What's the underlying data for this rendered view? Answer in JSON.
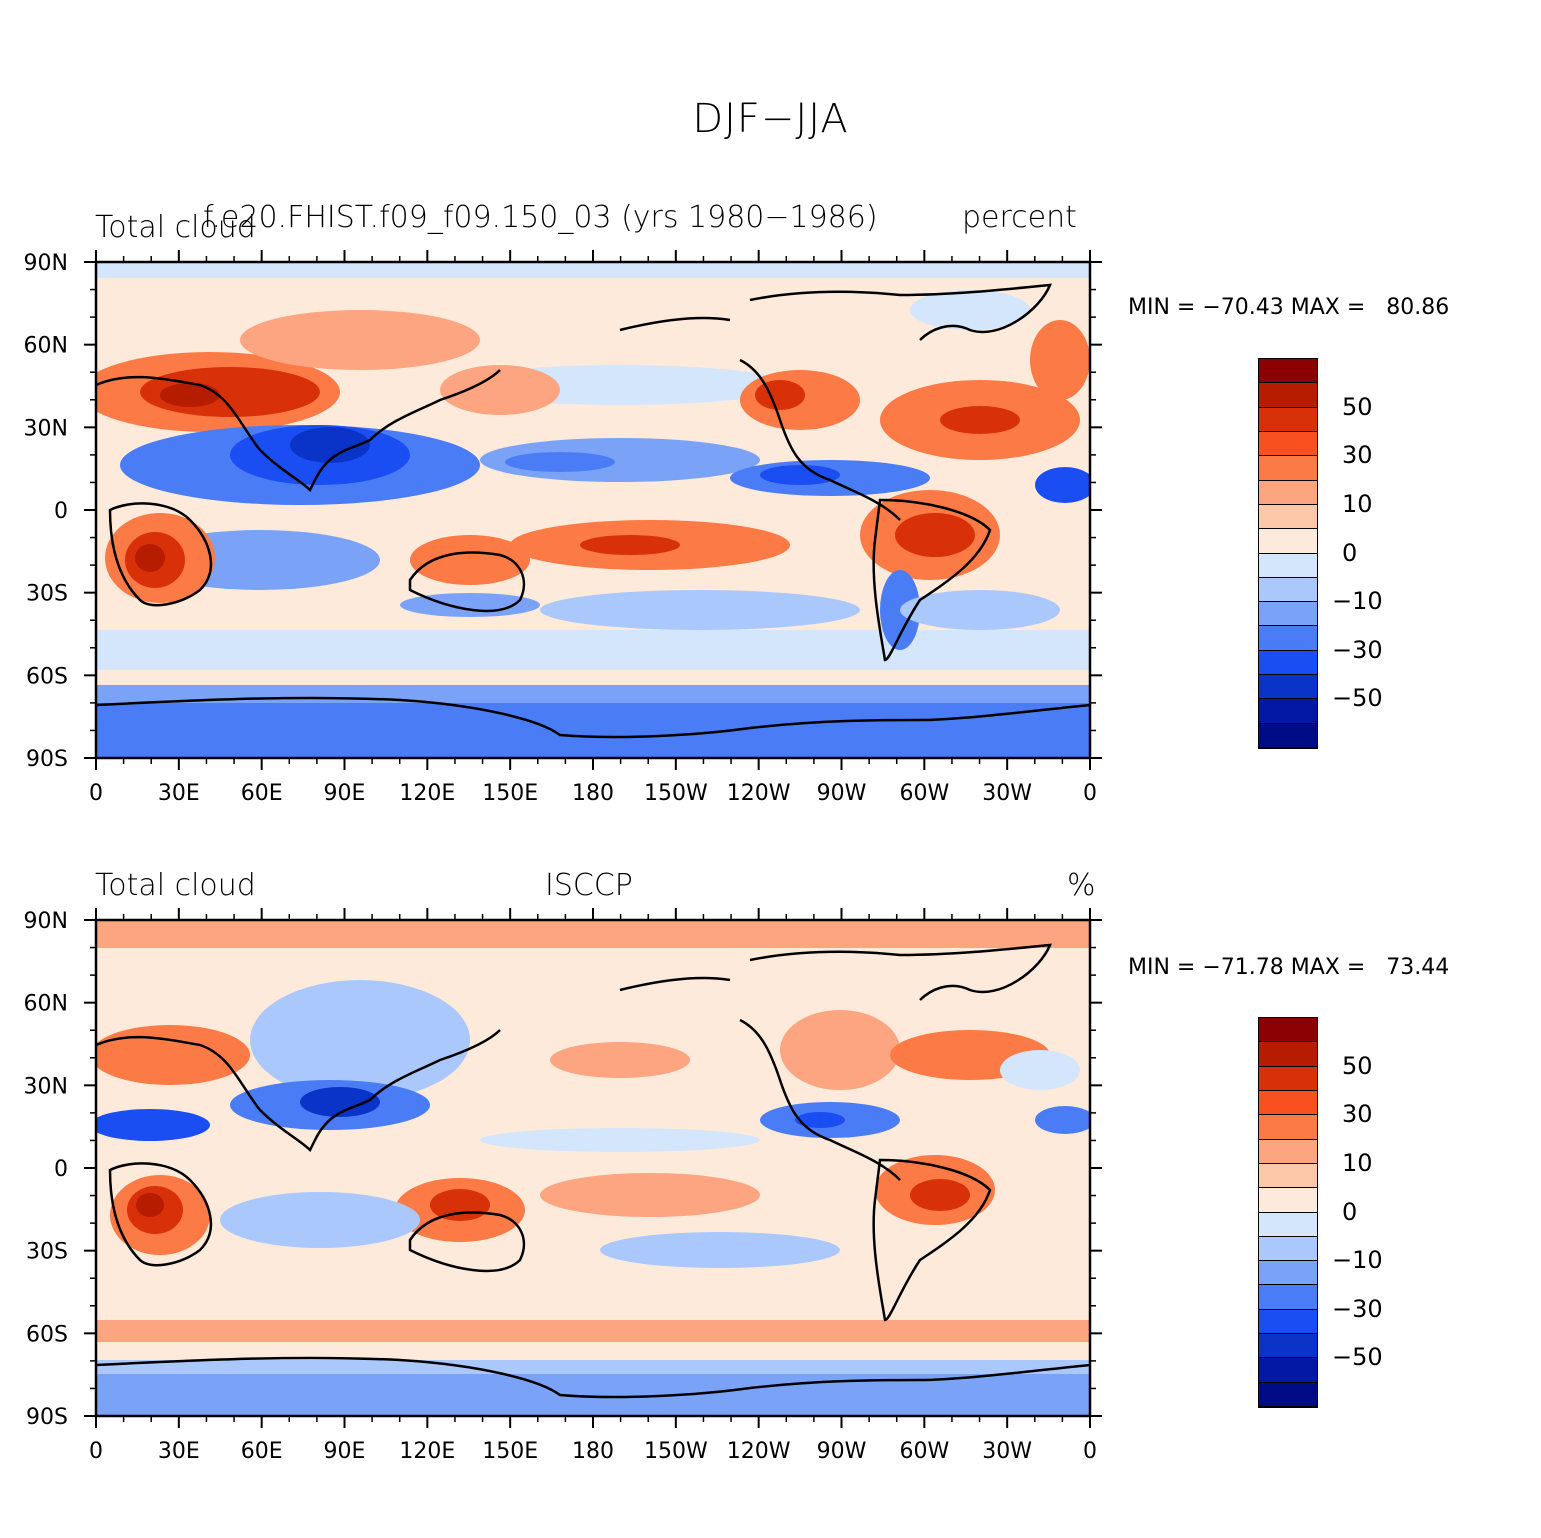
{
  "title": "DJF−JJA",
  "panels": [
    {
      "left_label": "Total cloud",
      "center_label": "f.e20.FHIST.f09_f09.150_03 (yrs 1980−1986)",
      "right_label": "percent",
      "min_max": "MIN = −70.43 MAX =   80.86"
    },
    {
      "left_label": "Total cloud",
      "center_label": "ISCCP",
      "right_label": "%",
      "min_max": "MIN = −71.78 MAX =   73.44"
    }
  ],
  "lat_ticks": [
    "90N",
    "60N",
    "30N",
    "0",
    "30S",
    "60S",
    "90S"
  ],
  "lon_ticks": [
    "0",
    "30E",
    "60E",
    "90E",
    "120E",
    "150E",
    "180",
    "150W",
    "120W",
    "90W",
    "60W",
    "30W",
    "0"
  ],
  "colorbar": {
    "labels": [
      "50",
      "30",
      "10",
      "0",
      "−10",
      "−30",
      "−50"
    ],
    "colors": [
      "#8b0000",
      "#b51c00",
      "#d8310a",
      "#f9501f",
      "#fb7a45",
      "#fca580",
      "#fdc8a9",
      "#feeadb",
      "#d3e6fc",
      "#abc8fc",
      "#7aa3f8",
      "#4a7cf6",
      "#1a4ef3",
      "#0a33c8",
      "#0018a3",
      "#000c86"
    ]
  }
}
